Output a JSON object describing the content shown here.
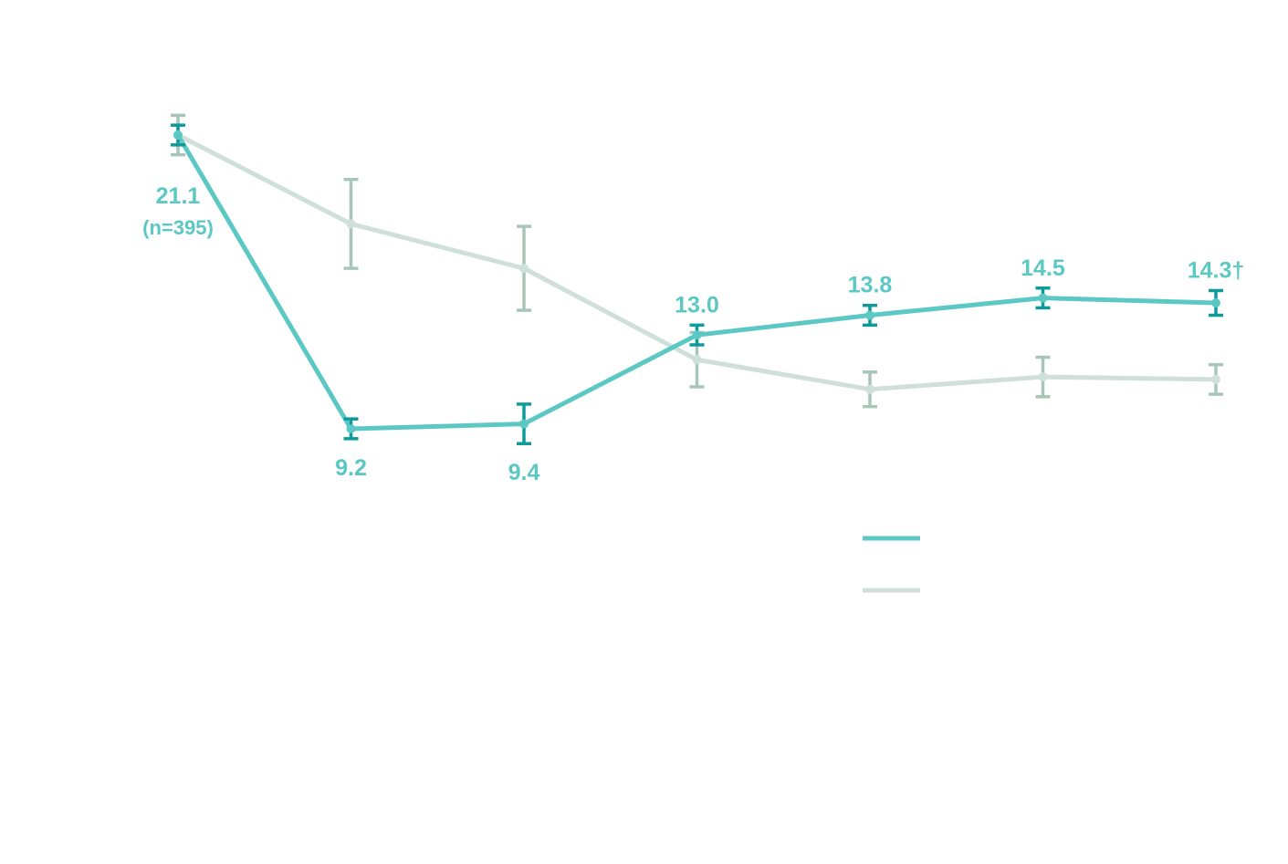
{
  "chart_data": {
    "type": "line",
    "title": "",
    "xlabel": "",
    "ylabel": "",
    "x": [
      0,
      1,
      2,
      3,
      4,
      5,
      6
    ],
    "ylim": [
      0,
      25
    ],
    "grid": false,
    "legend_position": "bottom-right",
    "series": [
      {
        "color": "#5cc8c4",
        "error_color": "#0e9a9a",
        "values": [
          21.1,
          9.2,
          9.4,
          13.0,
          13.8,
          14.5,
          14.3
        ],
        "err": [
          0.4,
          0.4,
          0.8,
          0.4,
          0.4,
          0.4,
          0.5
        ],
        "labels": [
          "21.1",
          "9.2",
          "9.4",
          "13.0",
          "13.8",
          "14.5",
          "14.3†"
        ],
        "sublabels": [
          "(n=395)",
          "",
          "",
          "",
          "",
          "",
          ""
        ],
        "label_pos": [
          "below",
          "below",
          "below",
          "above",
          "above",
          "above",
          "above"
        ]
      },
      {
        "color": "#cfe0da",
        "error_color": "#a8c6b8",
        "values": [
          21.1,
          17.5,
          15.7,
          12.0,
          10.8,
          11.3,
          11.2
        ],
        "err": [
          0.8,
          1.8,
          1.7,
          1.1,
          0.7,
          0.8,
          0.6
        ]
      }
    ]
  }
}
